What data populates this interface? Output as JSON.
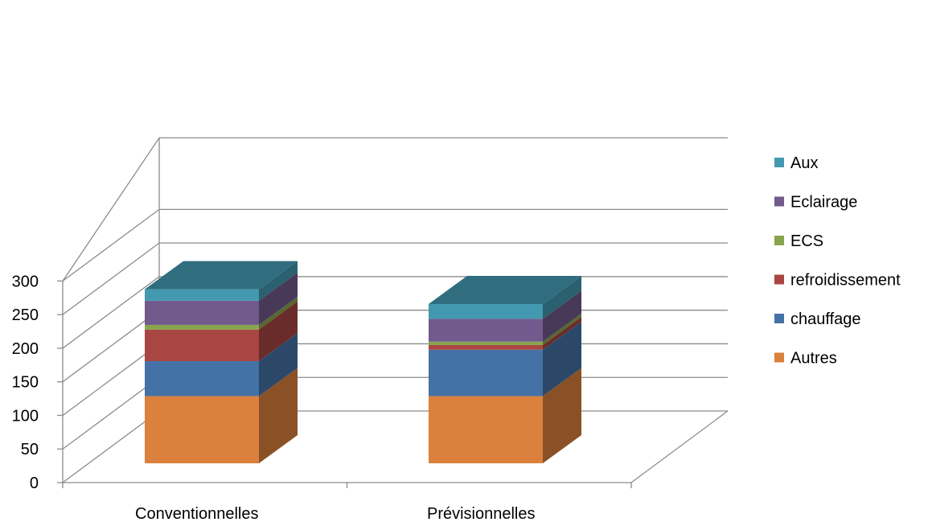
{
  "chart_data": {
    "type": "bar",
    "stacked": true,
    "three_d": true,
    "title": "",
    "xlabel": "",
    "ylabel": "",
    "ylim": [
      0,
      300
    ],
    "y_ticks": [
      0,
      50,
      100,
      150,
      200,
      250,
      300
    ],
    "grid": true,
    "legend_position": "right",
    "categories": [
      "Conventionnelles",
      "Prévisionnelles"
    ],
    "series": [
      {
        "name": "Autres",
        "values": [
          100,
          100
        ],
        "color": "#DB813D"
      },
      {
        "name": "chauffage",
        "values": [
          52,
          69
        ],
        "color": "#4472A6"
      },
      {
        "name": "refroidissement",
        "values": [
          47,
          7
        ],
        "color": "#A94643"
      },
      {
        "name": "ECS",
        "values": [
          7,
          5
        ],
        "color": "#88A54E"
      },
      {
        "name": "Eclairage",
        "values": [
          36,
          34
        ],
        "color": "#725A8C"
      },
      {
        "name": "Aux",
        "values": [
          17,
          22
        ],
        "color": "#4299B0"
      }
    ]
  }
}
